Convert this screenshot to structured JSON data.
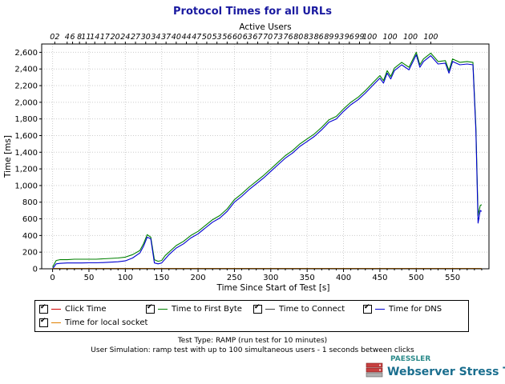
{
  "title": "Protocol Times for all URLs",
  "top_axis_label": "Active Users",
  "top_tick_labels": [
    {
      "x": 3,
      "label": "02"
    },
    {
      "x": 20,
      "label": "4"
    },
    {
      "x": 27.5,
      "label": "6"
    },
    {
      "x": 37,
      "label": "8"
    },
    {
      "x": 46,
      "label": "11"
    },
    {
      "x": 58,
      "label": "14"
    },
    {
      "x": 72,
      "label": "17"
    },
    {
      "x": 86,
      "label": "20"
    },
    {
      "x": 100,
      "label": "24"
    },
    {
      "x": 114,
      "label": "27"
    },
    {
      "x": 128,
      "label": "30"
    },
    {
      "x": 142,
      "label": "34"
    },
    {
      "x": 156,
      "label": "37"
    },
    {
      "x": 170,
      "label": "40"
    },
    {
      "x": 184,
      "label": "44"
    },
    {
      "x": 198,
      "label": "47"
    },
    {
      "x": 212,
      "label": "50"
    },
    {
      "x": 226,
      "label": "53"
    },
    {
      "x": 240,
      "label": "56"
    },
    {
      "x": 254,
      "label": "60"
    },
    {
      "x": 268,
      "label": "63"
    },
    {
      "x": 282,
      "label": "67"
    },
    {
      "x": 296,
      "label": "70"
    },
    {
      "x": 310,
      "label": "73"
    },
    {
      "x": 324,
      "label": "76"
    },
    {
      "x": 338,
      "label": "80"
    },
    {
      "x": 352,
      "label": "83"
    },
    {
      "x": 366,
      "label": "86"
    },
    {
      "x": 380,
      "label": "89"
    },
    {
      "x": 394,
      "label": "93"
    },
    {
      "x": 408,
      "label": "96"
    },
    {
      "x": 422,
      "label": "99"
    },
    {
      "x": 436,
      "label": "100"
    },
    {
      "x": 464,
      "label": "100"
    },
    {
      "x": 492,
      "label": "100"
    },
    {
      "x": 520,
      "label": "100"
    }
  ],
  "chart_data": {
    "type": "line",
    "title": "Protocol Times for all URLs",
    "xlabel": "Time Since Start of Test [s]",
    "ylabel": "Time [ms]",
    "xlim": [
      -15,
      600
    ],
    "ylim": [
      0,
      2700
    ],
    "xticks": [
      0,
      50,
      100,
      150,
      200,
      250,
      300,
      350,
      400,
      450,
      500,
      550
    ],
    "yticks": [
      0,
      200,
      400,
      600,
      800,
      1000,
      1200,
      1400,
      1600,
      1800,
      2000,
      2200,
      2400,
      2600
    ],
    "ytick_labels": [
      "0",
      "200",
      "400",
      "600",
      "800",
      "1,000",
      "1,200",
      "1,400",
      "1,600",
      "1,800",
      "2,000",
      "2,200",
      "2,400",
      "2,600"
    ],
    "grid": true,
    "legend_placement": "below",
    "series": [
      {
        "name": "Click Time",
        "color": "#d00000",
        "checked": true,
        "x": [
          0,
          590
        ],
        "y": [
          0,
          0
        ]
      },
      {
        "name": "Time to First Byte",
        "color": "#008000",
        "checked": true,
        "x": [
          0,
          5,
          10,
          20,
          30,
          40,
          50,
          60,
          70,
          80,
          90,
          100,
          110,
          120,
          125,
          130,
          135,
          140,
          145,
          150,
          155,
          160,
          170,
          180,
          190,
          200,
          210,
          220,
          230,
          240,
          250,
          260,
          270,
          280,
          290,
          300,
          310,
          320,
          330,
          340,
          350,
          360,
          370,
          380,
          390,
          400,
          410,
          420,
          430,
          440,
          450,
          455,
          460,
          465,
          470,
          480,
          490,
          500,
          505,
          510,
          520,
          530,
          540,
          545,
          550,
          560,
          570,
          578,
          582,
          585,
          588,
          590
        ],
        "y": [
          20,
          100,
          110,
          110,
          115,
          115,
          115,
          115,
          120,
          125,
          130,
          140,
          170,
          220,
          300,
          410,
          380,
          110,
          90,
          100,
          160,
          200,
          280,
          330,
          400,
          450,
          520,
          590,
          640,
          720,
          830,
          900,
          980,
          1050,
          1120,
          1200,
          1280,
          1360,
          1420,
          1500,
          1560,
          1620,
          1700,
          1790,
          1830,
          1920,
          2000,
          2060,
          2140,
          2230,
          2320,
          2260,
          2380,
          2310,
          2410,
          2480,
          2420,
          2600,
          2450,
          2520,
          2590,
          2490,
          2500,
          2380,
          2520,
          2480,
          2490,
          2480,
          1700,
          640,
          760,
          770
        ]
      },
      {
        "name": "Time to Connect",
        "color": "#404040",
        "checked": true,
        "x": [
          0,
          590
        ],
        "y": [
          0,
          0
        ]
      },
      {
        "name": "Time for DNS",
        "color": "#0000d0",
        "checked": true,
        "x": [
          0,
          5,
          10,
          20,
          30,
          40,
          50,
          60,
          70,
          80,
          90,
          100,
          110,
          120,
          125,
          130,
          135,
          140,
          145,
          150,
          155,
          160,
          170,
          180,
          190,
          200,
          210,
          220,
          230,
          240,
          250,
          260,
          270,
          280,
          290,
          300,
          310,
          320,
          330,
          340,
          350,
          360,
          370,
          380,
          390,
          400,
          410,
          420,
          430,
          440,
          450,
          455,
          460,
          465,
          470,
          480,
          490,
          500,
          505,
          510,
          520,
          530,
          540,
          545,
          550,
          560,
          570,
          578,
          582,
          585,
          588,
          590
        ],
        "y": [
          0,
          60,
          65,
          70,
          70,
          70,
          72,
          72,
          75,
          80,
          85,
          95,
          130,
          190,
          270,
          380,
          360,
          70,
          60,
          70,
          120,
          170,
          250,
          300,
          370,
          420,
          490,
          560,
          610,
          690,
          800,
          870,
          950,
          1020,
          1090,
          1170,
          1250,
          1330,
          1390,
          1470,
          1530,
          1590,
          1670,
          1760,
          1800,
          1890,
          1970,
          2030,
          2110,
          2200,
          2290,
          2230,
          2350,
          2280,
          2380,
          2450,
          2390,
          2570,
          2420,
          2490,
          2560,
          2460,
          2470,
          2350,
          2490,
          2450,
          2460,
          2450,
          1650,
          550,
          700,
          690
        ]
      },
      {
        "name": "Time for local socket",
        "color": "#e08000",
        "checked": true,
        "x": [
          0,
          590
        ],
        "y": [
          5,
          5
        ]
      }
    ]
  },
  "footer": {
    "test_type": "Test Type: RAMP (run test for 10 minutes)",
    "user_simulation": "User Simulation: ramp test with up to 100 simultaneous users - 1 seconds between clicks"
  },
  "logo": {
    "brand": "PAESSLER",
    "name": "Webserver Stress Tool"
  }
}
